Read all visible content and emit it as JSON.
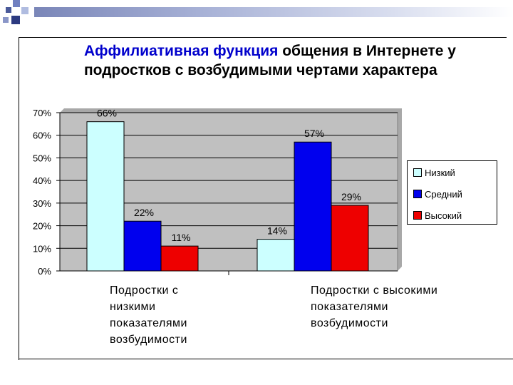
{
  "title": {
    "accent": "Аффилиативная функция",
    "rest": " общения в Интернете у подростков с возбудимыми чертами характера"
  },
  "chart_data": {
    "type": "bar",
    "categories": [
      "Подростки с низкими показателями возбудимости",
      "Подростки с высокими показателями возбудимости"
    ],
    "series": [
      {
        "name": "Низкий",
        "values": [
          66,
          14
        ],
        "labels": [
          "66%",
          "14%"
        ],
        "color": "#ccffff"
      },
      {
        "name": "Средний",
        "values": [
          22,
          57
        ],
        "labels": [
          "22%",
          "57%"
        ],
        "color": "#0000ee"
      },
      {
        "name": "Высокий",
        "values": [
          11,
          29
        ],
        "labels": [
          "11%",
          "29%"
        ],
        "color": "#ee0000"
      }
    ],
    "ylim": [
      0,
      70
    ],
    "yticks": [
      "0%",
      "10%",
      "20%",
      "30%",
      "40%",
      "50%",
      "60%",
      "70%"
    ],
    "grid": true,
    "plot_background": "#c0c0c0",
    "legend": "right",
    "unit": "%"
  },
  "group_labels": [
    "Подростки  с\nнизкими\nпоказателями\nвозбудимости",
    "Подростки  с высокими\nпоказателями\nвозбудимости"
  ]
}
